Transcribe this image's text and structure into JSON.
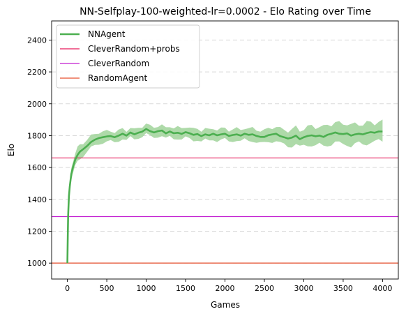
{
  "chart_data": {
    "type": "line",
    "title": "NN-Selfplay-100-weighted-lr=0.0002 - Elo Rating over Time",
    "xlabel": "Games",
    "ylabel": "Elo",
    "xlim": [
      -200,
      4200
    ],
    "ylim": [
      900,
      2520
    ],
    "xticks": [
      0,
      500,
      1000,
      1500,
      2000,
      2500,
      3000,
      3500,
      4000
    ],
    "yticks": [
      1000,
      1200,
      1400,
      1600,
      1800,
      2000,
      2200,
      2400
    ],
    "grid": "horizontal dashed",
    "legend_position": "top-left",
    "series": [
      {
        "name": "NNAgent",
        "kind": "line-with-band",
        "color": "#4caf50",
        "band_color": "#a5d6a0",
        "points": [
          [
            0,
            1000
          ],
          [
            5,
            1180
          ],
          [
            10,
            1300
          ],
          [
            20,
            1420
          ],
          [
            30,
            1480
          ],
          [
            50,
            1560
          ],
          [
            75,
            1610
          ],
          [
            100,
            1650
          ],
          [
            130,
            1680
          ],
          [
            160,
            1700
          ],
          [
            200,
            1715
          ],
          [
            250,
            1735
          ],
          [
            300,
            1760
          ],
          [
            350,
            1775
          ],
          [
            400,
            1785
          ],
          [
            450,
            1790
          ],
          [
            500,
            1795
          ],
          [
            550,
            1797
          ],
          [
            600,
            1790
          ],
          [
            650,
            1800
          ],
          [
            700,
            1812
          ],
          [
            750,
            1800
          ],
          [
            800,
            1820
          ],
          [
            850,
            1808
          ],
          [
            900,
            1818
          ],
          [
            950,
            1825
          ],
          [
            1000,
            1842
          ],
          [
            1050,
            1828
          ],
          [
            1100,
            1820
          ],
          [
            1150,
            1828
          ],
          [
            1200,
            1832
          ],
          [
            1250,
            1814
          ],
          [
            1300,
            1826
          ],
          [
            1350,
            1815
          ],
          [
            1400,
            1818
          ],
          [
            1450,
            1811
          ],
          [
            1500,
            1822
          ],
          [
            1550,
            1815
          ],
          [
            1600,
            1805
          ],
          [
            1650,
            1810
          ],
          [
            1700,
            1797
          ],
          [
            1750,
            1808
          ],
          [
            1800,
            1802
          ],
          [
            1850,
            1812
          ],
          [
            1900,
            1802
          ],
          [
            1950,
            1808
          ],
          [
            2000,
            1812
          ],
          [
            2050,
            1798
          ],
          [
            2100,
            1804
          ],
          [
            2150,
            1808
          ],
          [
            2200,
            1800
          ],
          [
            2250,
            1812
          ],
          [
            2300,
            1805
          ],
          [
            2350,
            1808
          ],
          [
            2400,
            1798
          ],
          [
            2450,
            1792
          ],
          [
            2500,
            1792
          ],
          [
            2550,
            1803
          ],
          [
            2600,
            1808
          ],
          [
            2650,
            1812
          ],
          [
            2700,
            1797
          ],
          [
            2750,
            1790
          ],
          [
            2800,
            1782
          ],
          [
            2850,
            1788
          ],
          [
            2900,
            1800
          ],
          [
            2950,
            1778
          ],
          [
            3000,
            1790
          ],
          [
            3050,
            1798
          ],
          [
            3100,
            1802
          ],
          [
            3150,
            1796
          ],
          [
            3200,
            1800
          ],
          [
            3250,
            1792
          ],
          [
            3300,
            1805
          ],
          [
            3350,
            1812
          ],
          [
            3400,
            1820
          ],
          [
            3450,
            1812
          ],
          [
            3500,
            1810
          ],
          [
            3550,
            1814
          ],
          [
            3600,
            1800
          ],
          [
            3650,
            1808
          ],
          [
            3700,
            1812
          ],
          [
            3750,
            1808
          ],
          [
            3800,
            1816
          ],
          [
            3850,
            1822
          ],
          [
            3900,
            1818
          ],
          [
            3950,
            1826
          ],
          [
            4000,
            1826
          ]
        ],
        "band_halfwidth": [
          [
            0,
            5
          ],
          [
            50,
            30
          ],
          [
            100,
            45
          ],
          [
            200,
            40
          ],
          [
            400,
            35
          ],
          [
            800,
            30
          ],
          [
            1000,
            32
          ],
          [
            1500,
            35
          ],
          [
            2000,
            35
          ],
          [
            2500,
            40
          ],
          [
            3000,
            55
          ],
          [
            3500,
            65
          ],
          [
            4000,
            60
          ]
        ]
      },
      {
        "name": "CleverRandom+probs",
        "kind": "hline",
        "y": 1660,
        "color": "#e6195a"
      },
      {
        "name": "CleverRandom",
        "kind": "hline",
        "y": 1292,
        "color": "#c21fd1"
      },
      {
        "name": "RandomAgent",
        "kind": "hline",
        "y": 1000,
        "color": "#e64f2d"
      }
    ]
  }
}
